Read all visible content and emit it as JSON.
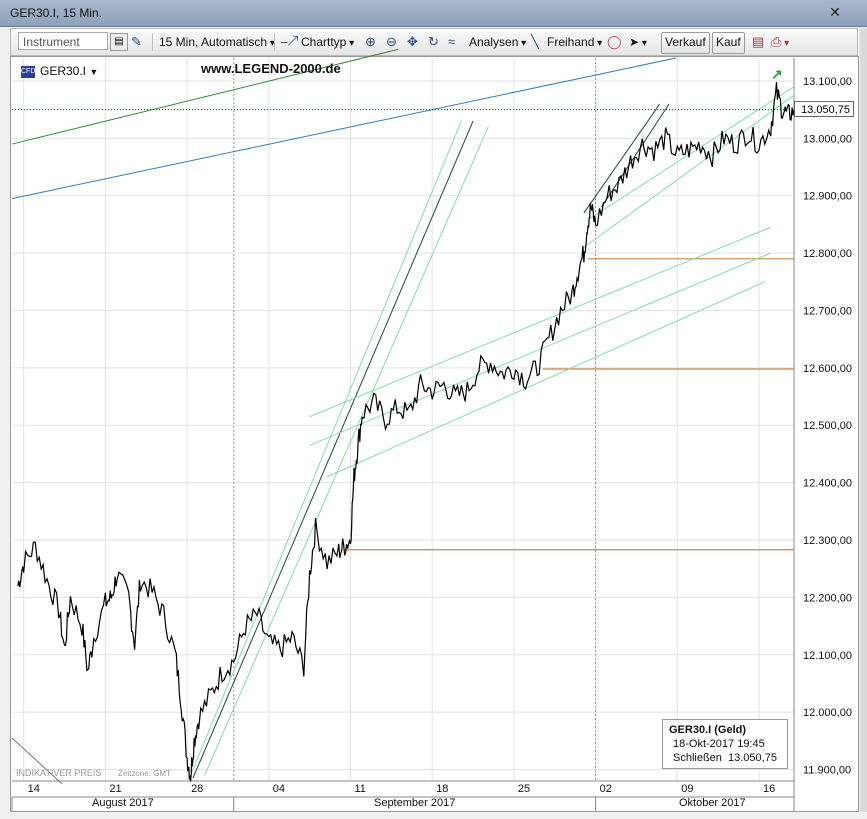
{
  "window": {
    "title": "GER30.I, 15 Min."
  },
  "toolbar": {
    "instrument_placeholder": "Instrument",
    "interval_label": "15 Min,  Automatisch",
    "charttype_label": "Charttyp",
    "analysen_label": "Analysen",
    "freihand_label": "Freihand",
    "verkauf_label": "Verkauf",
    "kauf_label": "Kauf"
  },
  "chart_header": {
    "symbol": "GER30.I",
    "watermark": "www.LEGEND-2000.de"
  },
  "footer": {
    "indicative": "INDIKATIVER PREIS",
    "timezone": "Zeitzone: GMT"
  },
  "infobox": {
    "title": "GER30.I (Geld)",
    "date": "18-Okt-2017 19:45",
    "close_label": "Schließen",
    "close_value": "13.050,75"
  },
  "current_price_tag": "13.050,75",
  "colors": {
    "price_line": "#000000",
    "channel_green": "#7fe0a8",
    "channel_dark": "#1a4d33",
    "level_orange": "#cd853f",
    "blue_line": "#2b7fc4",
    "green_line": "#2e8b3a"
  },
  "chart_data": {
    "type": "line",
    "ylim": [
      11880,
      13140
    ],
    "y_ticks": [
      11900,
      12000,
      12100,
      12200,
      12300,
      12400,
      12500,
      12600,
      12700,
      12800,
      12900,
      13000,
      13100
    ],
    "y_tick_labels": [
      "11.900,00",
      "12.000,00",
      "12.100,00",
      "12.200,00",
      "12.300,00",
      "12.400,00",
      "12.500,00",
      "12.600,00",
      "12.700,00",
      "12.800,00",
      "12.900,00",
      "13.000,00",
      "13.100,00"
    ],
    "x_day_ticks": [
      {
        "label": "14",
        "d": 14
      },
      {
        "label": "21",
        "d": 21
      },
      {
        "label": "28",
        "d": 28
      },
      {
        "label": "04",
        "d": 35
      },
      {
        "label": "11",
        "d": 42
      },
      {
        "label": "18",
        "d": 49
      },
      {
        "label": "25",
        "d": 56
      },
      {
        "label": "02",
        "d": 63
      },
      {
        "label": "09",
        "d": 70
      },
      {
        "label": "16",
        "d": 77
      }
    ],
    "x_months": [
      {
        "label": "August 2017",
        "from": 13,
        "to": 32
      },
      {
        "label": "September 2017",
        "from": 32,
        "to": 63
      },
      {
        "label": "Oktober 2017",
        "from": 63,
        "to": 83
      }
    ],
    "x_day_range": [
      13,
      80
    ],
    "series": [
      {
        "x": [
          13.5,
          14,
          15,
          16,
          17,
          17.5,
          18,
          19,
          19.5,
          20,
          21,
          21.5,
          22,
          23,
          23.5,
          24,
          25,
          26,
          27,
          27.5,
          28,
          28.3,
          28.6,
          29,
          30,
          31,
          32,
          33,
          34,
          35,
          36,
          37,
          38,
          38.5,
          39,
          40,
          41,
          41.5,
          42,
          42.3,
          42.6,
          43,
          44,
          45,
          46,
          47,
          48,
          49,
          50,
          51,
          52,
          53,
          54,
          55,
          56,
          57,
          58,
          59,
          60,
          61,
          61.5,
          62,
          62.3,
          62.6,
          63,
          64,
          65,
          66,
          67,
          68,
          69,
          70,
          71,
          72,
          73,
          74,
          75,
          76,
          77,
          78,
          78.5,
          79,
          79.5,
          80
        ],
        "values": [
          12220,
          12260,
          12290,
          12230,
          12180,
          12110,
          12200,
          12150,
          12070,
          12130,
          12190,
          12200,
          12240,
          12200,
          12120,
          12230,
          12210,
          12170,
          12100,
          12020,
          11920,
          11890,
          11950,
          11990,
          12030,
          12070,
          12090,
          12150,
          12170,
          12120,
          12110,
          12130,
          12080,
          12240,
          12320,
          12260,
          12280,
          12290,
          12300,
          12410,
          12460,
          12520,
          12540,
          12510,
          12530,
          12520,
          12570,
          12560,
          12570,
          12550,
          12560,
          12600,
          12610,
          12590,
          12600,
          12580,
          12600,
          12650,
          12700,
          12730,
          12770,
          12800,
          12850,
          12880,
          12850,
          12900,
          12920,
          12960,
          12990,
          12980,
          13000,
          12970,
          12980,
          12990,
          12970,
          13000,
          12990,
          13010,
          12990,
          13020,
          13080,
          13050,
          13040,
          13050
        ]
      }
    ]
  }
}
